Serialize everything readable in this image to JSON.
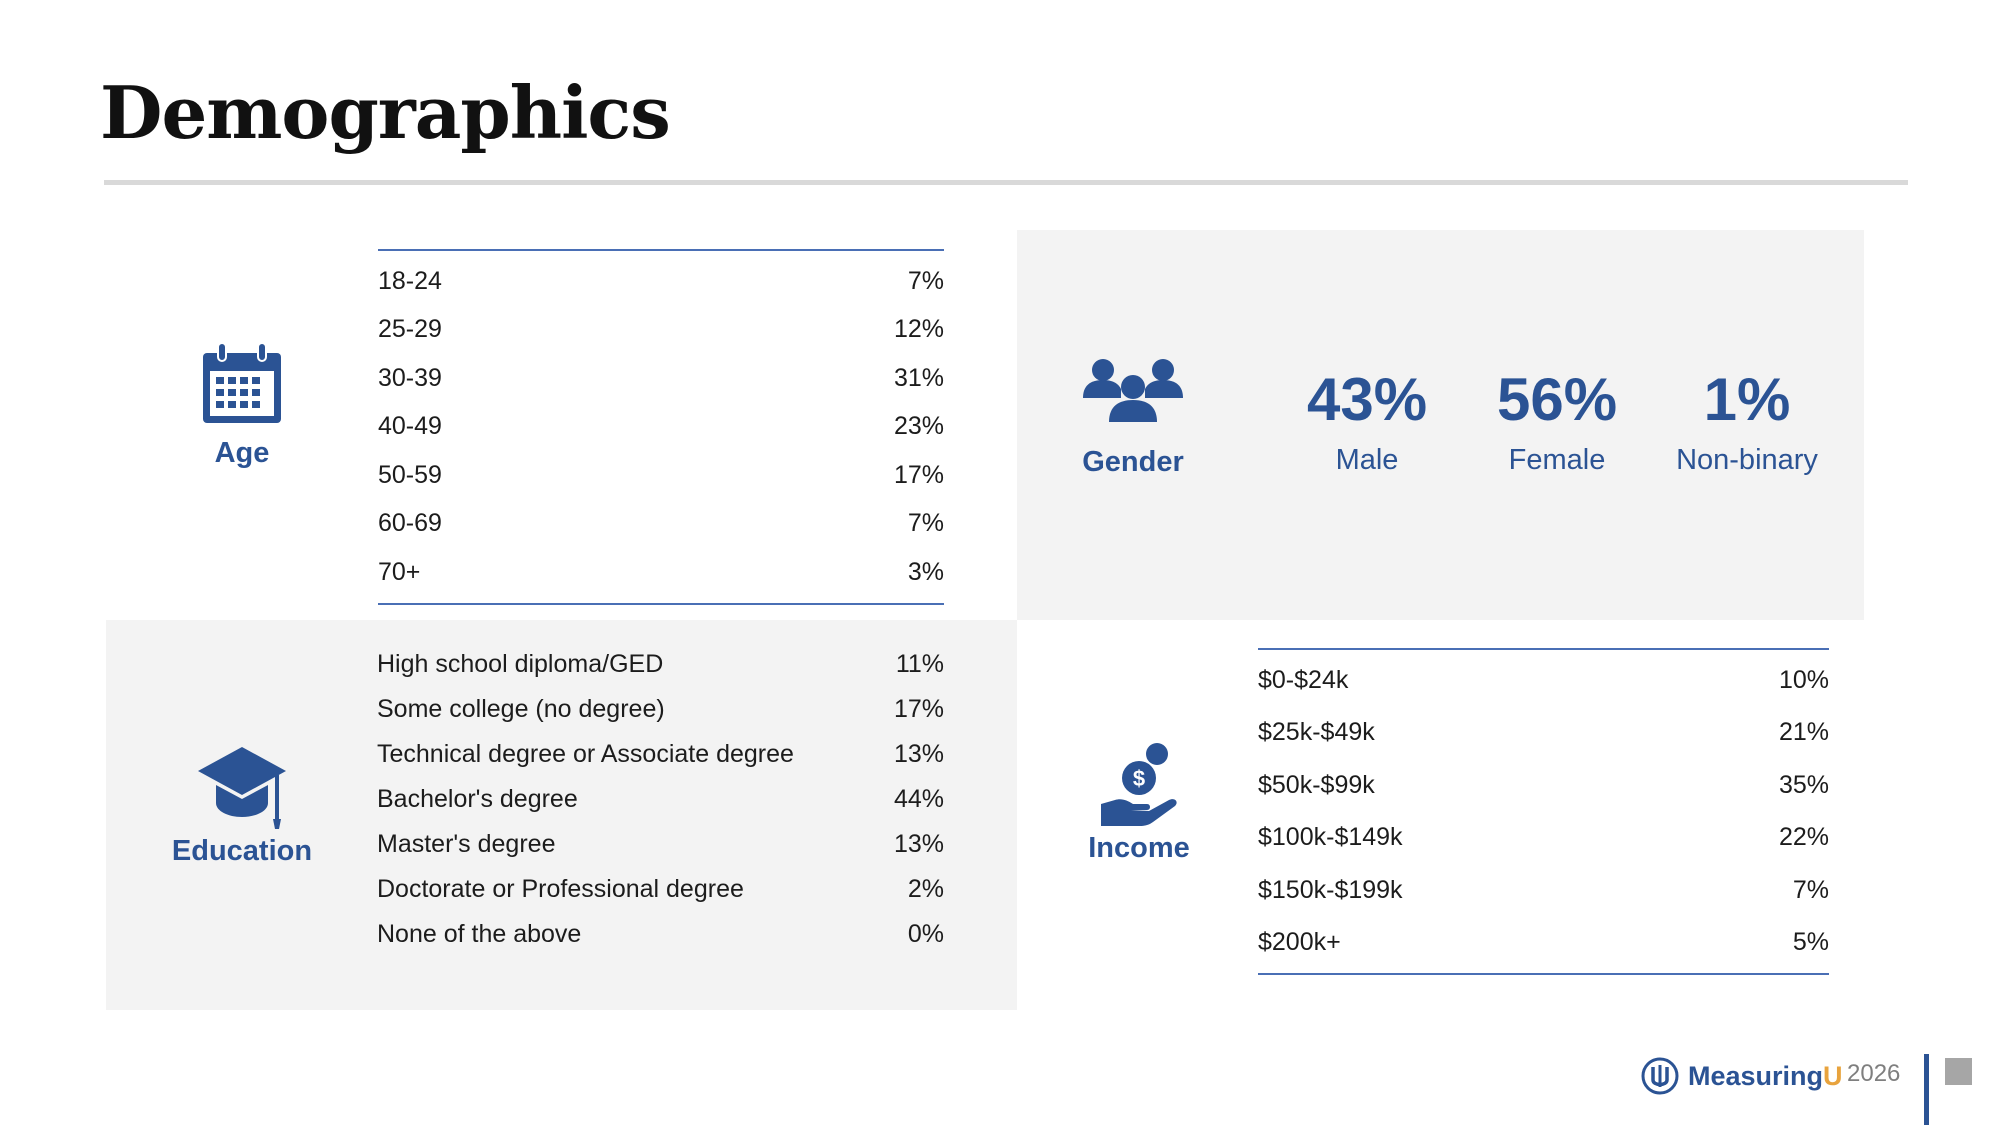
{
  "page": {
    "title": "Demographics"
  },
  "age": {
    "label": "Age",
    "icon": "calendar-icon",
    "rows": [
      {
        "range": "18-24",
        "pct": "7%"
      },
      {
        "range": "25-29",
        "pct": "12%"
      },
      {
        "range": "30-39",
        "pct": "31%"
      },
      {
        "range": "40-49",
        "pct": "23%"
      },
      {
        "range": "50-59",
        "pct": "17%"
      },
      {
        "range": "60-69",
        "pct": "7%"
      },
      {
        "range": "70+",
        "pct": "3%"
      }
    ]
  },
  "gender": {
    "label": "Gender",
    "icon": "group-icon",
    "stats": [
      {
        "value": "43%",
        "label": "Male"
      },
      {
        "value": "56%",
        "label": "Female"
      },
      {
        "value": "1%",
        "label": "Non-binary"
      }
    ]
  },
  "education": {
    "label": "Education",
    "icon": "graduation-cap-icon",
    "rows": [
      {
        "level": "High school diploma/GED",
        "pct": "11%"
      },
      {
        "level": "Some college (no degree)",
        "pct": "17%"
      },
      {
        "level": "Technical degree or Associate degree",
        "pct": "13%"
      },
      {
        "level": "Bachelor's degree",
        "pct": "44%"
      },
      {
        "level": "Master's degree",
        "pct": "13%"
      },
      {
        "level": "Doctorate or Professional degree",
        "pct": "2%"
      },
      {
        "level": "None of the above",
        "pct": "0%"
      }
    ]
  },
  "income": {
    "label": "Income",
    "icon": "money-hand-icon",
    "rows": [
      {
        "range": "$0-$24k",
        "pct": "10%"
      },
      {
        "range": "$25k-$49k",
        "pct": "21%"
      },
      {
        "range": "$50k-$99k",
        "pct": "35%"
      },
      {
        "range": "$100k-$149k",
        "pct": "22%"
      },
      {
        "range": "$150k-$199k",
        "pct": "7%"
      },
      {
        "range": "$200k+",
        "pct": "5%"
      }
    ]
  },
  "footer": {
    "brand_main": "Measuring",
    "brand_accent": "U",
    "year": "2026"
  },
  "colors": {
    "accent": "#2b5394",
    "panel": "#f3f3f3",
    "logo_accent": "#e8a33d"
  }
}
